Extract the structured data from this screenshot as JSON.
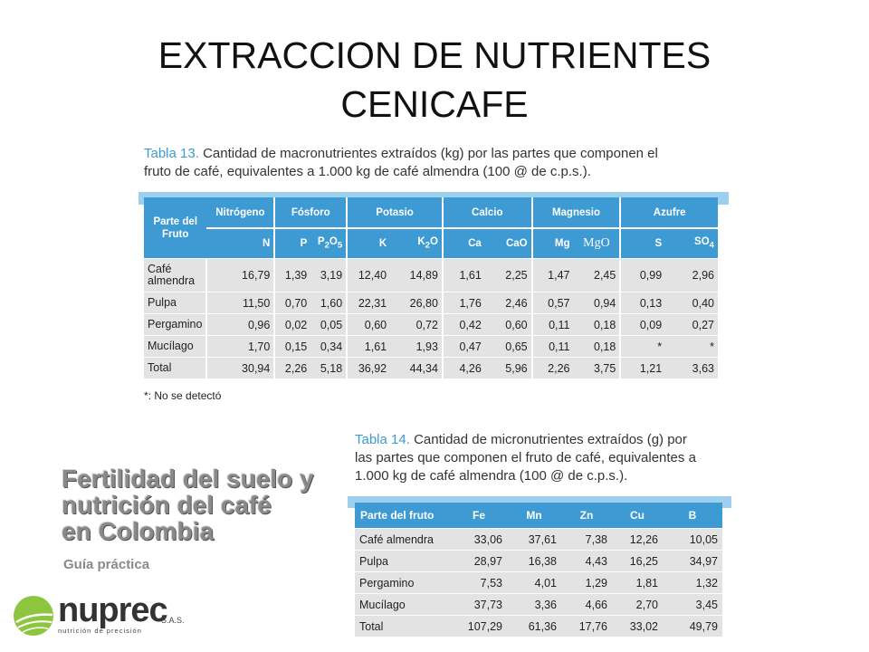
{
  "title_line1": "EXTRACCION DE NUTRIENTES",
  "title_line2": "CENICAFE",
  "table13": {
    "label": "Tabla 13.",
    "caption_l1": "Cantidad de macronutrientes extraídos (kg) por las partes que componen el",
    "caption_l2": "fruto de café, equivalentes a 1.000 kg de café almendra (100 @ de c.p.s.).",
    "corner_l1": "Parte del",
    "corner_l2": "Fruto",
    "groups": [
      "Nitrógeno",
      "Fósforo",
      "Potasio",
      "Calcio",
      "Magnesio",
      "Azufre"
    ],
    "subheaders": {
      "N": "N",
      "P": "P",
      "P2O5_a": "P",
      "P2O5_b": "2",
      "P2O5_c": "O",
      "P2O5_d": "5",
      "K": "K",
      "K2O_a": "K",
      "K2O_b": "2",
      "K2O_c": "O",
      "Ca": "Ca",
      "CaO": "CaO",
      "Mg": "Mg",
      "MgO": "MgO",
      "S": "S",
      "SO4_a": "SO",
      "SO4_b": "4"
    },
    "rows": [
      {
        "label_l1": "Café",
        "label_l2": "almendra",
        "values": [
          "16,79",
          "1,39",
          "3,19",
          "12,40",
          "14,89",
          "1,61",
          "2,25",
          "1,47",
          "2,45",
          "0,99",
          "2,96"
        ]
      },
      {
        "label_l1": "Pulpa",
        "label_l2": "",
        "values": [
          "11,50",
          "0,70",
          "1,60",
          "22,31",
          "26,80",
          "1,76",
          "2,46",
          "0,57",
          "0,94",
          "0,13",
          "0,40"
        ]
      },
      {
        "label_l1": "Pergamino",
        "label_l2": "",
        "values": [
          "0,96",
          "0,02",
          "0,05",
          "0,60",
          "0,72",
          "0,42",
          "0,60",
          "0,11",
          "0,18",
          "0,09",
          "0,27"
        ]
      },
      {
        "label_l1": "Mucílago",
        "label_l2": "",
        "values": [
          "1,70",
          "0,15",
          "0,34",
          "1,61",
          "1,93",
          "0,47",
          "0,65",
          "0,11",
          "0,18",
          "*",
          "*"
        ]
      },
      {
        "label_l1": "Total",
        "label_l2": "",
        "values": [
          "30,94",
          "2,26",
          "5,18",
          "36,92",
          "44,34",
          "4,26",
          "5,96",
          "2,26",
          "3,75",
          "1,21",
          "3,63"
        ]
      }
    ],
    "note": "*: No se detectó"
  },
  "table14": {
    "label": "Tabla 14.",
    "caption_l1": "Cantidad de micronutrientes extraídos (g) por",
    "caption_l2": "las partes que componen el fruto de café, equivalentes a",
    "caption_l3": "1.000 kg de café almendra (100 @ de c.p.s.).",
    "headers": [
      "Parte del fruto",
      "Fe",
      "Mn",
      "Zn",
      "Cu",
      "B"
    ],
    "rows": [
      [
        "Café almendra",
        "33,06",
        "37,61",
        "7,38",
        "12,26",
        "10,05"
      ],
      [
        "Pulpa",
        "28,97",
        "16,38",
        "4,43",
        "16,25",
        "34,97"
      ],
      [
        "Pergamino",
        "7,53",
        "4,01",
        "1,29",
        "1,81",
        "1,32"
      ],
      [
        "Mucílago",
        "37,73",
        "3,36",
        "4,66",
        "2,70",
        "3,45"
      ],
      [
        "Total",
        "107,29",
        "61,36",
        "17,76",
        "33,02",
        "49,79"
      ]
    ]
  },
  "book": {
    "line1": "Fertilidad del suelo y",
    "line2": "nutrición del café",
    "line3": "en Colombia",
    "subtitle": "Guía práctica"
  },
  "logo": {
    "brand": "nuprec",
    "tagline": "nutrición de precisión",
    "suffix": "S.A.S."
  },
  "colors": {
    "header_blue": "#3e9ad2",
    "strip_blue": "#9dd0ee",
    "row_gray": "#e3e3e3"
  }
}
